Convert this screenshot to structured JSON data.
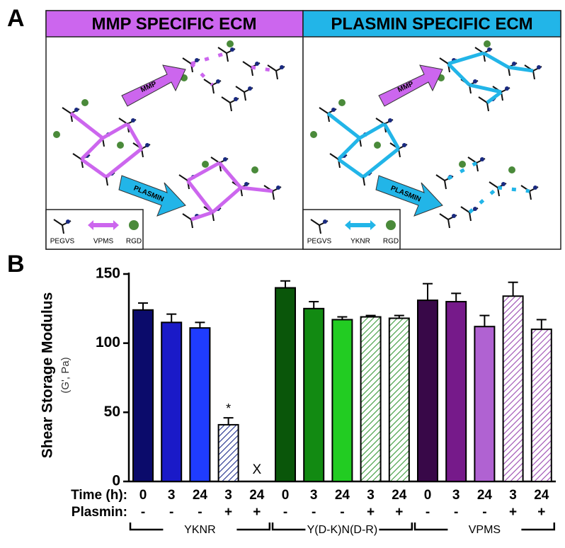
{
  "panel_a": {
    "label": "A",
    "left": {
      "title": "MMP SPECIFIC ECM",
      "arrow_top": "MMP",
      "arrow_bottom": "PLASMIN",
      "legend": [
        "PEGVS",
        "VPMS",
        "RGD"
      ]
    },
    "right": {
      "title": "PLASMIN SPECIFIC ECM",
      "arrow_top": "MMP",
      "arrow_bottom": "PLASMIN",
      "legend": [
        "PEGVS",
        "YKNR",
        "RGD"
      ]
    }
  },
  "chart_data": {
    "type": "bar",
    "panel_label": "B",
    "y_label": "Shear Storage Modulus",
    "y_sublabel": "(G', Pa)",
    "time_label": "Time (h):",
    "plasmin_label": "Plasmin:",
    "categories": [
      "0",
      "3",
      "24",
      "3",
      "24",
      "0",
      "3",
      "24",
      "3",
      "24",
      "0",
      "3",
      "24",
      "3",
      "24"
    ],
    "plasmin": [
      "-",
      "-",
      "-",
      "+",
      "+",
      "-",
      "-",
      "-",
      "+",
      "+",
      "-",
      "-",
      "-",
      "+",
      "+"
    ],
    "groups": [
      "YKNR",
      "Y(D-K)N(D-R)",
      "VPMS"
    ],
    "values": [
      124,
      115,
      111,
      41,
      null,
      140,
      125,
      117,
      119,
      118,
      131,
      130,
      112,
      134,
      110
    ],
    "errors": [
      5,
      6,
      4,
      5,
      null,
      5,
      5,
      2,
      1,
      2,
      12,
      6,
      8,
      10,
      7
    ],
    "colors": [
      "#0b0b6b",
      "#1a1ac8",
      "#1f3cff",
      "#1a2a8a",
      "#1a2a8a",
      "#0a560a",
      "#128a12",
      "#22cc22",
      "#3a9a3a",
      "#3a9a3a",
      "#380848",
      "#761a8a",
      "#b062d2",
      "#9a4ab0",
      "#9a4ab0"
    ],
    "hatched": [
      false,
      false,
      false,
      true,
      true,
      false,
      false,
      false,
      true,
      true,
      false,
      false,
      false,
      true,
      true
    ],
    "annotations": [
      "*",
      "X"
    ],
    "ylim": [
      0,
      150
    ],
    "yticks": [
      0,
      50,
      100,
      150
    ]
  }
}
